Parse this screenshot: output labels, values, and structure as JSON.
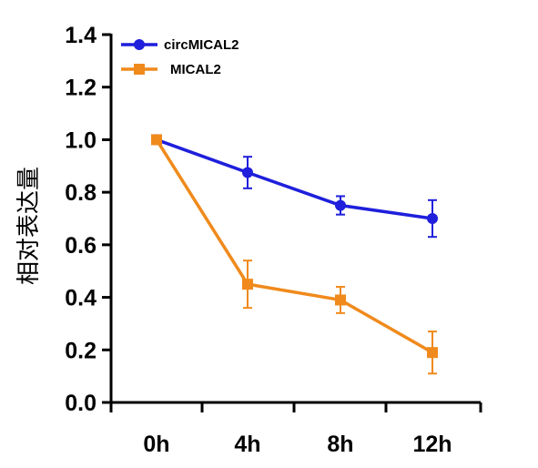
{
  "chart_data": {
    "type": "line",
    "x": [
      "0h",
      "4h",
      "8h",
      "12h"
    ],
    "ylabel": "相对表达量",
    "ylim": [
      0,
      1.4
    ],
    "yticks": [
      "0.0",
      "0.2",
      "0.4",
      "0.6",
      "0.8",
      "1.0",
      "1.2",
      "1.4"
    ],
    "grid": false,
    "legend_position": "top-left",
    "series": [
      {
        "name": "circMICAL2",
        "color": "#1f1fdc",
        "marker": "circle",
        "values": [
          1.0,
          0.875,
          0.75,
          0.7
        ],
        "errors": [
          0.015,
          0.06,
          0.035,
          0.07
        ]
      },
      {
        "name": "MICAL2",
        "color": "#f08a1c",
        "marker": "square",
        "values": [
          1.0,
          0.45,
          0.39,
          0.19
        ],
        "errors": [
          0.015,
          0.09,
          0.05,
          0.08
        ]
      }
    ]
  }
}
